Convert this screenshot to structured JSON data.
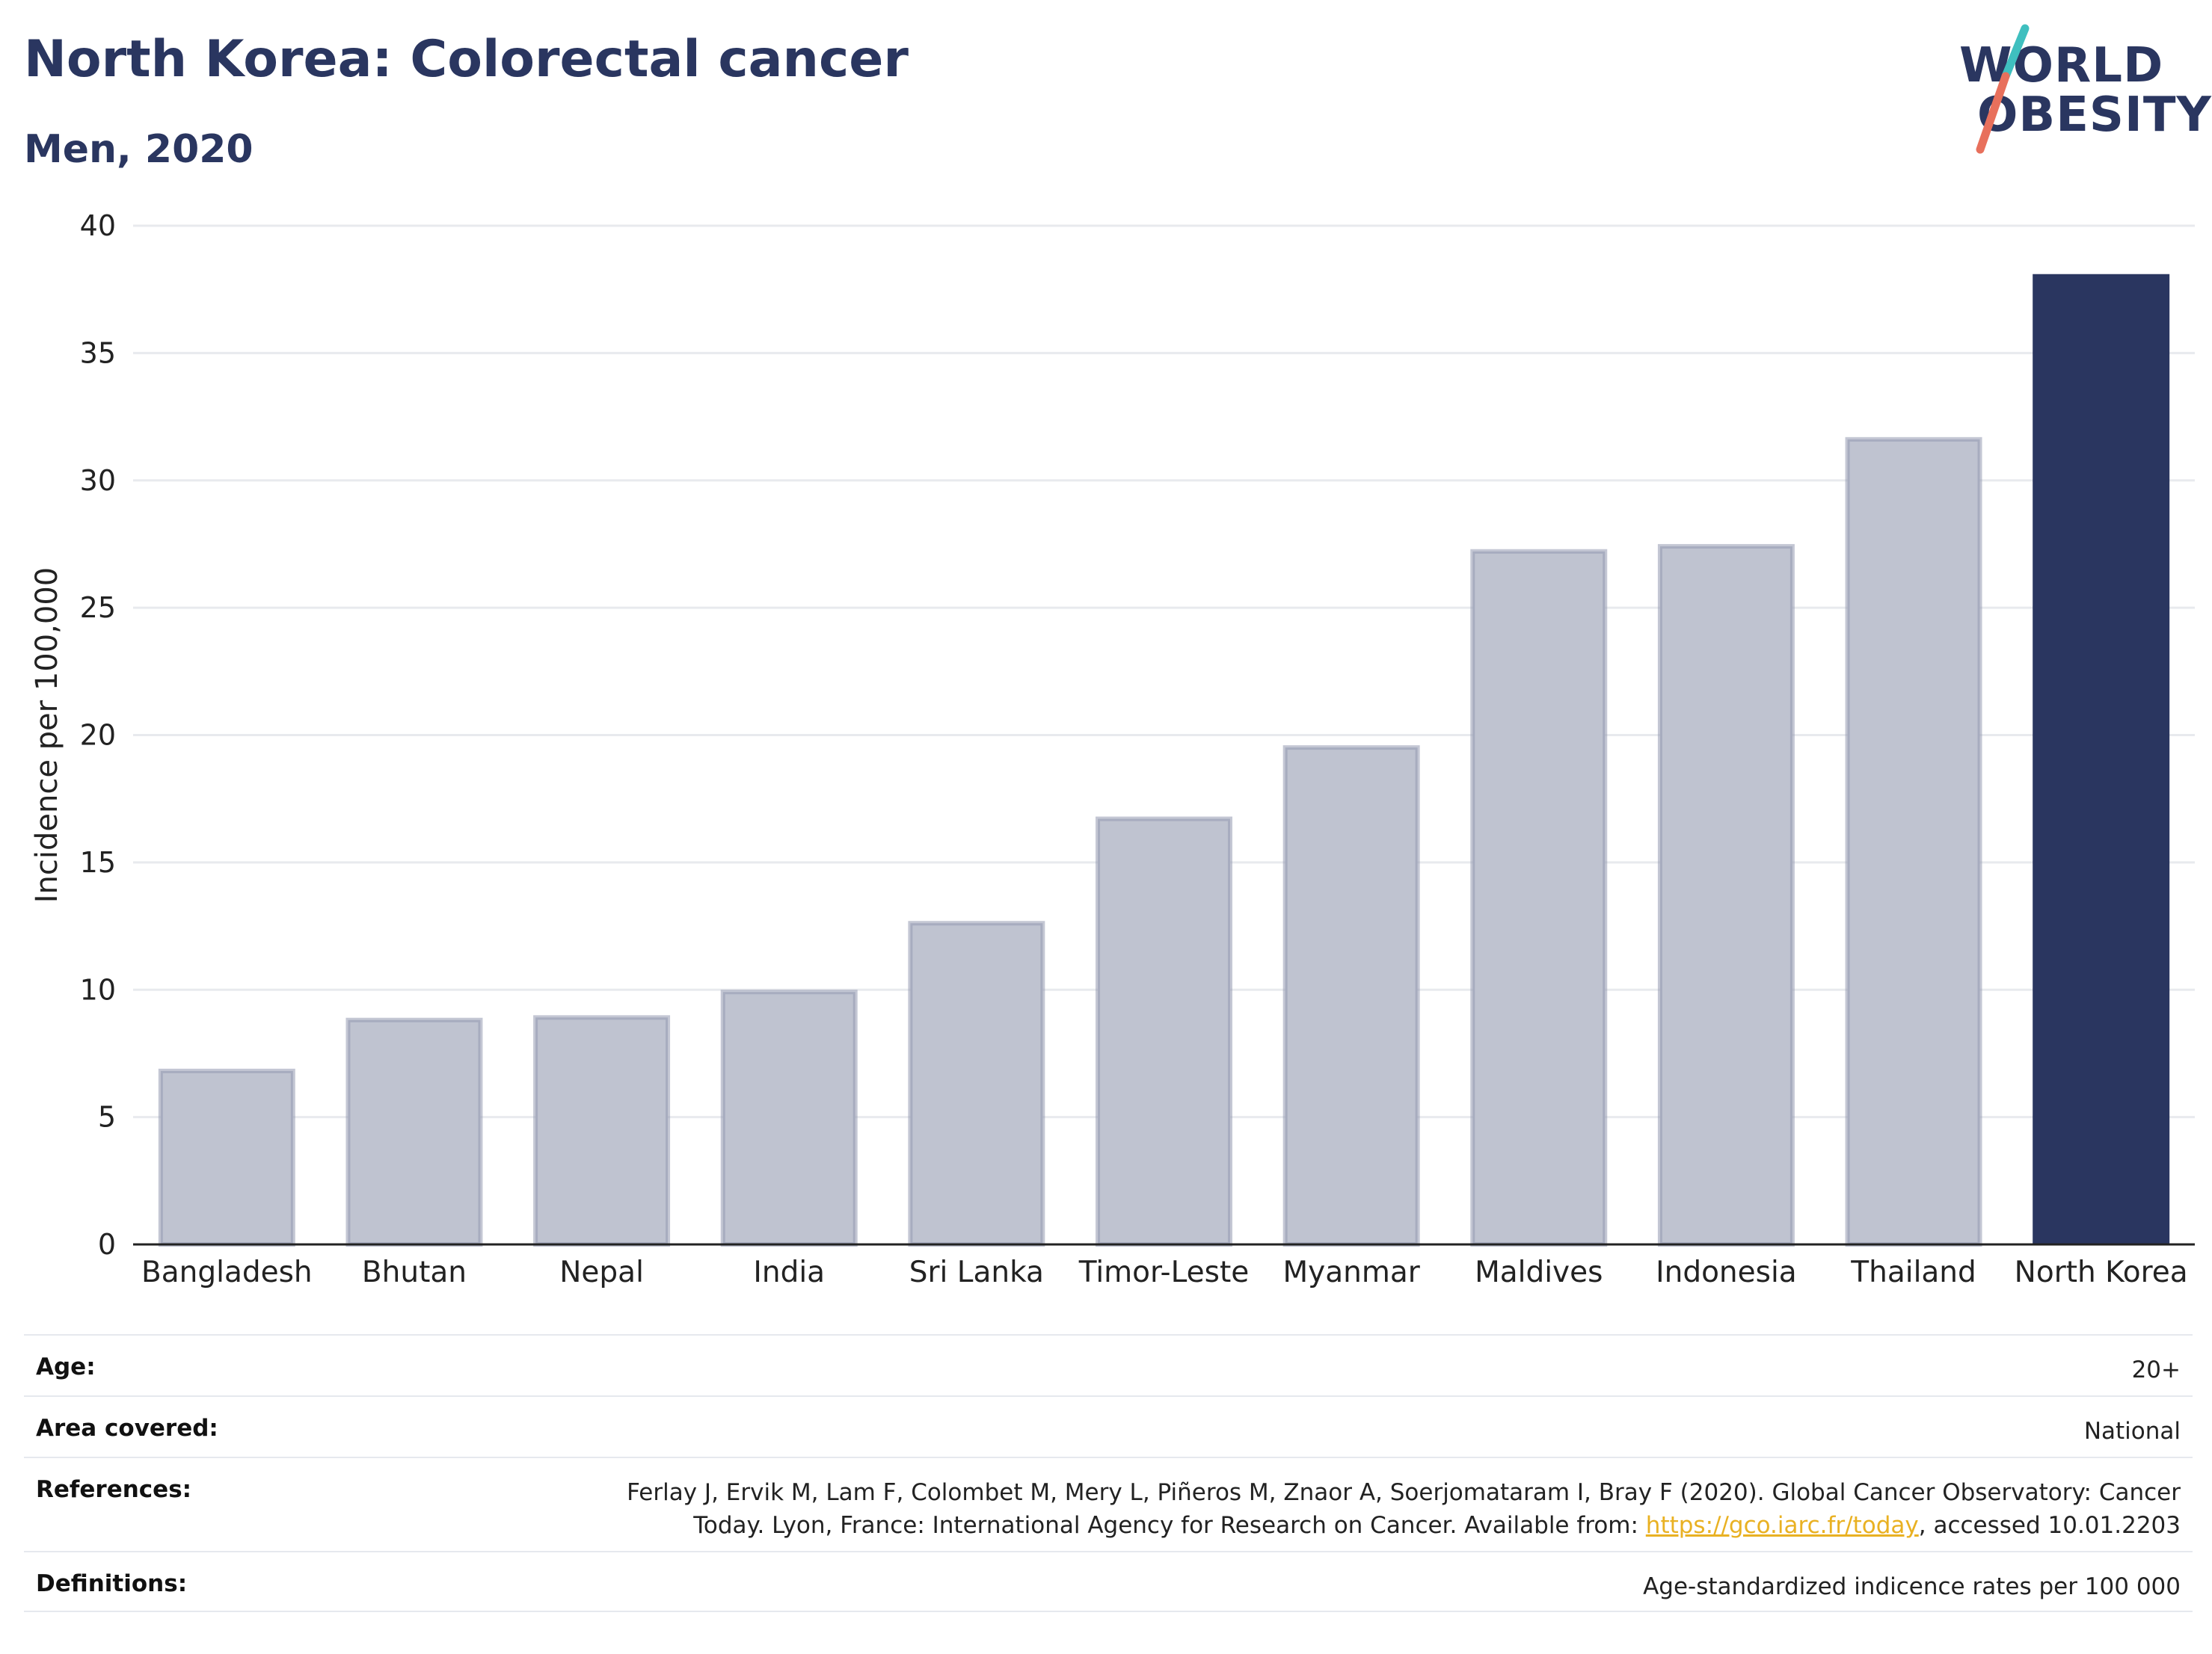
{
  "header": {
    "title": "North Korea: Colorectal cancer",
    "subtitle": "Men, 2020"
  },
  "logo": {
    "line1": "WORLD",
    "line2": "OBESITY",
    "colors": {
      "text": "#2a3660",
      "teal": "#3fbfbf",
      "coral": "#e8705c"
    }
  },
  "chart_data": {
    "type": "bar",
    "categories": [
      "Bangladesh",
      "Bhutan",
      "Nepal",
      "India",
      "Sri Lanka",
      "Timor-Leste",
      "Myanmar",
      "Maldives",
      "Indonesia",
      "Thailand",
      "North Korea"
    ],
    "values": [
      6.9,
      8.9,
      9.0,
      10.0,
      12.7,
      16.8,
      19.6,
      27.3,
      27.5,
      31.7,
      38.1
    ],
    "highlight": "North Korea",
    "ylabel": "Incidence per 100,000",
    "ylim": [
      0,
      40
    ],
    "yticks": [
      0,
      5,
      10,
      15,
      20,
      25,
      30,
      35,
      40
    ],
    "grid": true,
    "colors": {
      "bar": "#bfc3d0",
      "bar_border": "#9499b0",
      "highlight": "#2a3660",
      "grid": "#e8eaee",
      "axis": "#222222"
    }
  },
  "meta": {
    "age": {
      "label": "Age:",
      "value": "20+"
    },
    "area": {
      "label": "Area covered:",
      "value": "National"
    },
    "references": {
      "label": "References:",
      "line1": "Ferlay J, Ervik M, Lam F, Colombet M, Mery L, Piñeros M, Znaor A, Soerjomataram I, Bray F (2020). Global Cancer Observatory: Cancer",
      "line2_pre": "Today. Lyon, France: International Agency for Research on Cancer. Available from: ",
      "link": "https://gco.iarc.fr/today",
      "line2_post": ", accessed 10.01.2203"
    },
    "definitions": {
      "label": "Definitions:",
      "value": "Age-standardized indicence rates per 100 000"
    }
  }
}
